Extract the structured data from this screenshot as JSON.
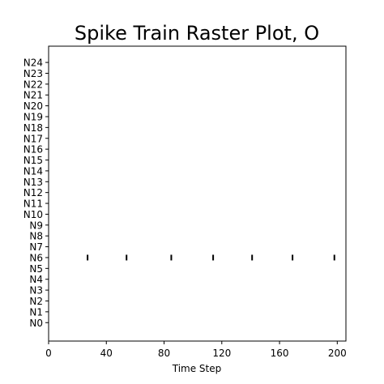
{
  "chart_data": {
    "type": "scatter",
    "title": "Spike Train Raster Plot, O",
    "xlabel": "Time Step",
    "ylabel": "",
    "xlim": [
      0,
      206
    ],
    "ylim": [
      -1.7,
      25.5
    ],
    "x_ticks": [
      0,
      40,
      80,
      120,
      160,
      200
    ],
    "categories": [
      "N0",
      "N1",
      "N2",
      "N3",
      "N4",
      "N5",
      "N6",
      "N7",
      "N8",
      "N9",
      "N10",
      "N11",
      "N12",
      "N13",
      "N14",
      "N15",
      "N16",
      "N17",
      "N18",
      "N19",
      "N20",
      "N21",
      "N22",
      "N23",
      "N24"
    ],
    "grid": false,
    "marker": "|",
    "color": "#000000",
    "series": [
      {
        "neuron": "N6",
        "x": [
          27,
          54,
          85,
          114,
          141,
          169,
          198
        ]
      }
    ]
  }
}
